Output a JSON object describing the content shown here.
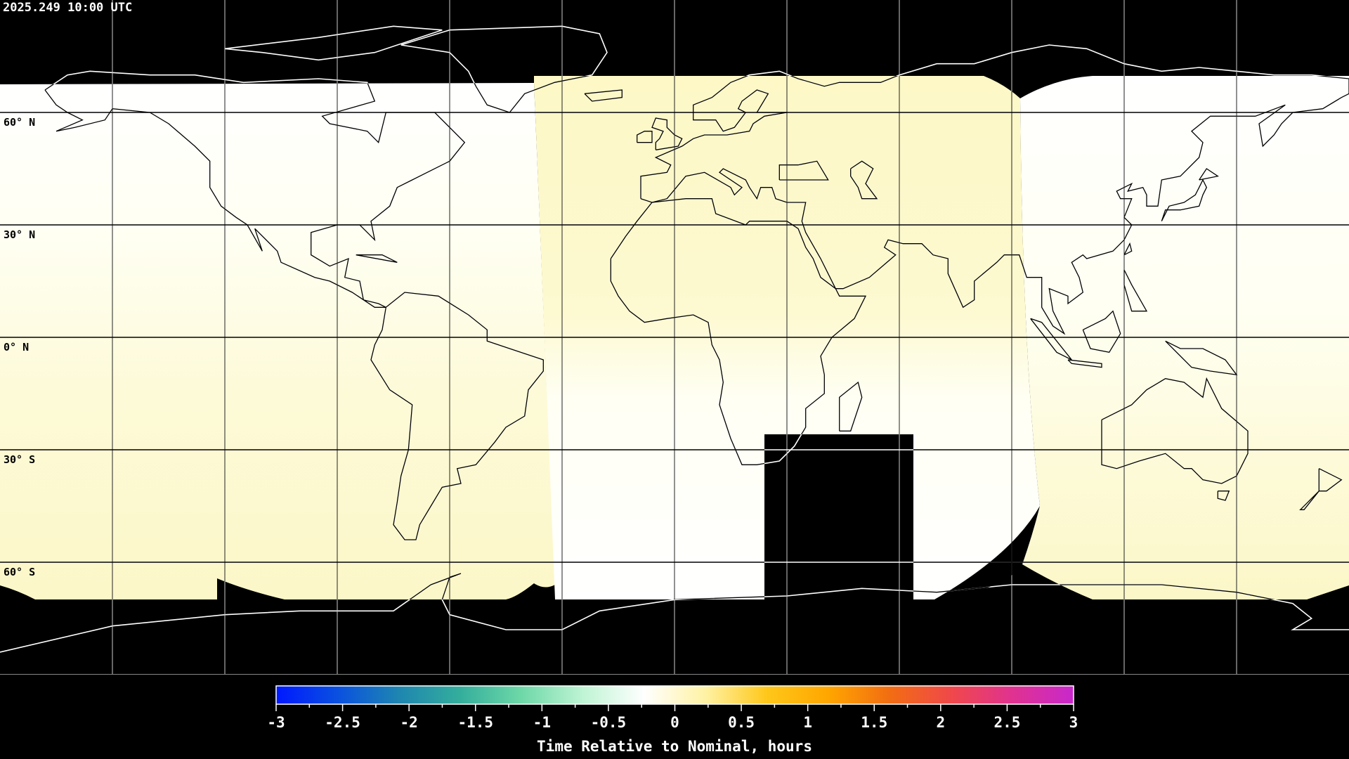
{
  "header": {
    "timestamp": "2025.249 10:00 UTC"
  },
  "map": {
    "projection": "equirectangular",
    "lat_labels": [
      "60° N",
      "30° N",
      "0° N",
      "30° S",
      "60° S"
    ],
    "gridline_lats": [
      60,
      30,
      0,
      -30,
      -60
    ],
    "gridline_lons": [
      -150,
      -120,
      -90,
      -60,
      -30,
      0,
      30,
      60,
      90,
      120,
      150
    ],
    "colors": {
      "no_data": "#000000",
      "near_zero": "#fffff6",
      "slight_late": "#fdf9cc"
    }
  },
  "colorbar": {
    "title": "Time Relative to Nominal, hours",
    "range": [
      -3,
      3
    ],
    "tick_labels": [
      "-3",
      "-2.5",
      "-2",
      "-1.5",
      "-1",
      "-0.5",
      "0",
      "0.5",
      "1",
      "1.5",
      "2",
      "2.5",
      "3"
    ],
    "colors": [
      "#0018ff",
      "#0a50e0",
      "#1e86b0",
      "#34ae9c",
      "#6ed8a8",
      "#bff4d4",
      "#ffffff",
      "#fff2a4",
      "#ffc71a",
      "#ffa600",
      "#f26d12",
      "#f0484a",
      "#e03290",
      "#c828cc"
    ]
  }
}
